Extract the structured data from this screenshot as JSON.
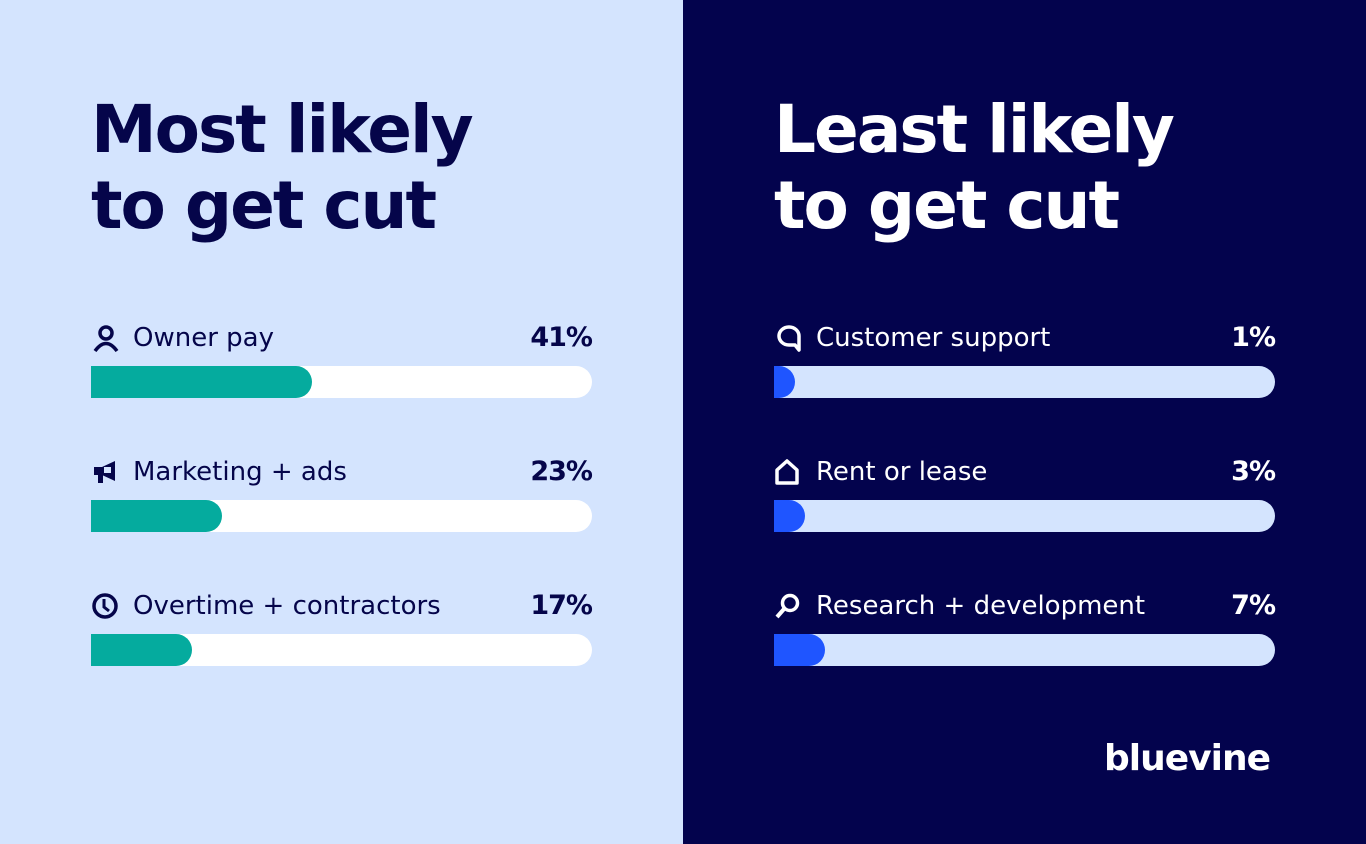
{
  "chart_data": [
    {
      "type": "bar",
      "title": "Most likely to get cut",
      "categories": [
        "Owner pay",
        "Marketing + ads",
        "Overtime + contractors"
      ],
      "values": [
        41,
        23,
        17
      ],
      "value_labels": [
        "41%",
        "23%",
        "17%"
      ],
      "icons": [
        "person-icon",
        "megaphone-icon",
        "clock-icon"
      ],
      "orientation": "horizontal",
      "xlim": [
        0,
        100
      ],
      "colors": {
        "background": "#d4e4fe",
        "bar": "#05ab9e",
        "track": "#ffffff",
        "text": "#05054a"
      }
    },
    {
      "type": "bar",
      "title": "Least likely to get cut",
      "categories": [
        "Customer support",
        "Rent or lease",
        "Research + development"
      ],
      "values": [
        1,
        3,
        7
      ],
      "value_labels": [
        "1%",
        "3%",
        "7%"
      ],
      "icons": [
        "chat-bubble-icon",
        "house-icon",
        "magnifier-icon"
      ],
      "orientation": "horizontal",
      "xlim": [
        0,
        100
      ],
      "colors": {
        "background": "#03034d",
        "bar": "#1f55ff",
        "track": "#d4e4fe",
        "text": "#ffffff"
      }
    }
  ],
  "brand": {
    "logo": "bluevine"
  }
}
